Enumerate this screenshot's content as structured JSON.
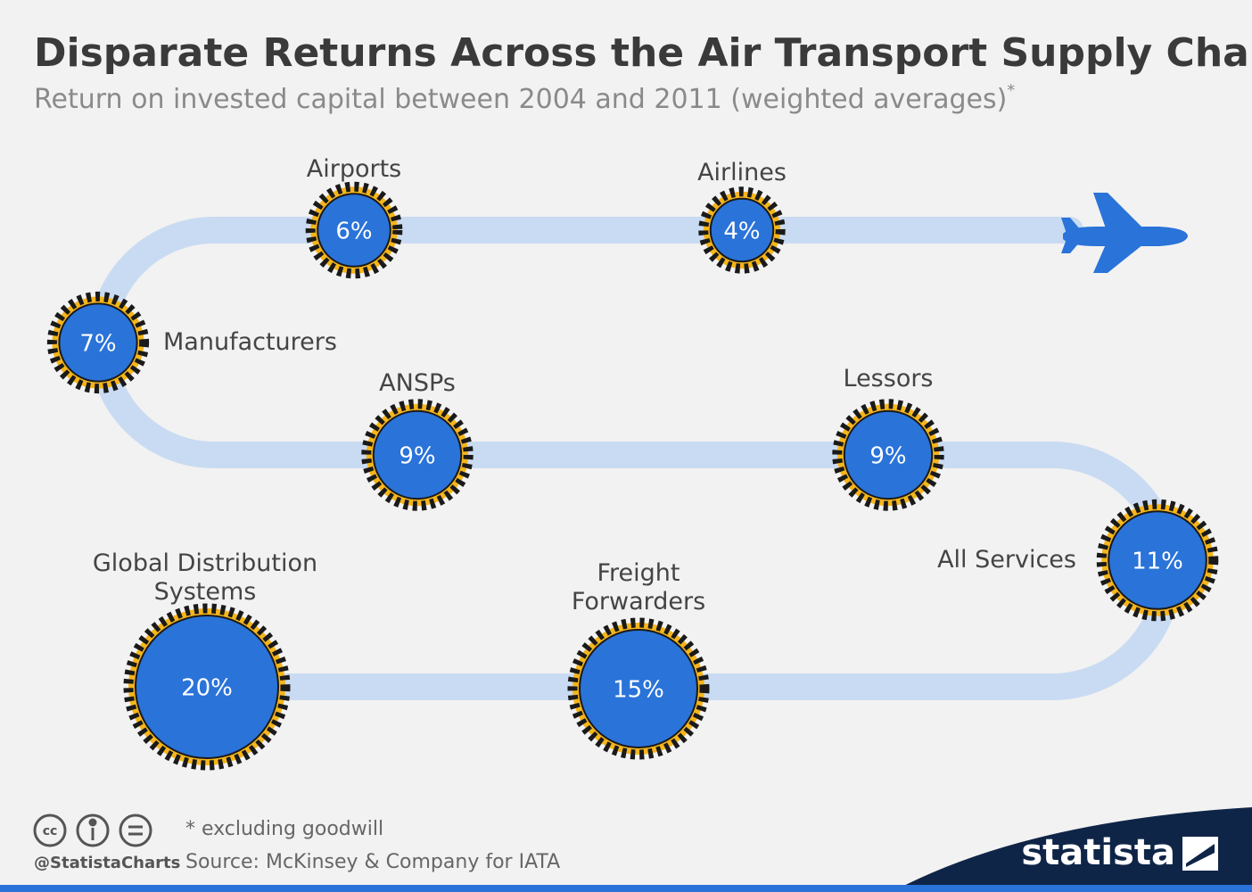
{
  "chart_data": {
    "type": "bubble",
    "title": "Disparate Returns Across the Air Transport Supply Chain",
    "subtitle": "Return on invested capital between 2004 and 2011 (weighted averages)",
    "subtitle_mark": "*",
    "categories": [
      "Airports",
      "Airlines",
      "Manufacturers",
      "ANSPs",
      "Lessors",
      "All Services",
      "Global Distribution\nSystems",
      "Freight\nForwarders"
    ],
    "values": [
      6,
      4,
      7,
      9,
      9,
      11,
      20,
      15
    ],
    "value_labels": [
      "6%",
      "4%",
      "7%",
      "9%",
      "9%",
      "11%",
      "20%",
      "15%"
    ],
    "color": "#2a73d9",
    "ring_colors": [
      "#f5b51b",
      "#1a1a1a"
    ],
    "track_color": "#c9dbf2",
    "note": "* excluding goodwill",
    "source": "Source: McKinsey & Company for IATA",
    "credit": "@StatistaCharts",
    "logo": "statista"
  }
}
